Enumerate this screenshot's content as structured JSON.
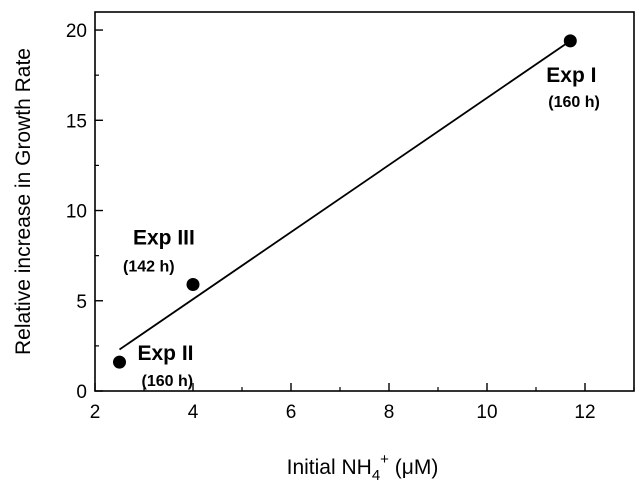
{
  "chart_data": {
    "type": "scatter",
    "title": "",
    "xlabel": {
      "prefix": "Initial NH",
      "subscript": "4",
      "superscript": "+",
      "units": " (μM)"
    },
    "ylabel": "Relative increase in Growth Rate",
    "xlim": [
      2,
      13
    ],
    "ylim": [
      0,
      21
    ],
    "xticks": [
      2,
      4,
      6,
      8,
      10,
      12
    ],
    "yticks": [
      0,
      5,
      10,
      15,
      20
    ],
    "x_minor_step": 1,
    "y_minor_step": 2.5,
    "grid": false,
    "points": [
      {
        "x": 2.5,
        "y": 1.6,
        "label": "Exp II",
        "sublabel": "(160 h)"
      },
      {
        "x": 4.0,
        "y": 5.9,
        "label": "Exp III",
        "sublabel": "(142 h)"
      },
      {
        "x": 11.7,
        "y": 19.4,
        "label": "Exp I",
        "sublabel": "(160 h)"
      }
    ],
    "fit_line": {
      "x": [
        2.5,
        11.7
      ],
      "y": [
        2.3,
        19.4
      ]
    },
    "colors": {
      "marker": "#000000",
      "line": "#000000"
    }
  }
}
